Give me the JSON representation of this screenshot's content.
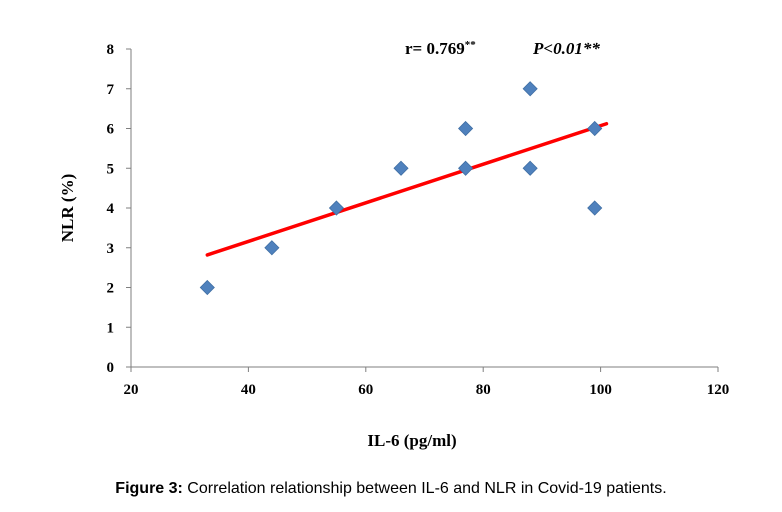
{
  "chart_data": {
    "type": "scatter",
    "xlabel": "IL-6 (pg/ml)",
    "ylabel": "NLR (%)",
    "xlim": [
      20,
      120
    ],
    "ylim": [
      0,
      8
    ],
    "xticks": [
      "20",
      "40",
      "60",
      "80",
      "100",
      "120"
    ],
    "yticks": [
      "0",
      "1",
      "2",
      "3",
      "4",
      "5",
      "6",
      "7",
      "8"
    ],
    "points": [
      {
        "x": 33,
        "y": 2
      },
      {
        "x": 44,
        "y": 3
      },
      {
        "x": 55,
        "y": 4
      },
      {
        "x": 66,
        "y": 5
      },
      {
        "x": 77,
        "y": 5
      },
      {
        "x": 77,
        "y": 6
      },
      {
        "x": 88,
        "y": 7
      },
      {
        "x": 88,
        "y": 5
      },
      {
        "x": 99,
        "y": 6
      },
      {
        "x": 99,
        "y": 4
      }
    ],
    "trendline": {
      "x1": 33,
      "y1": 2.82,
      "x2": 101,
      "y2": 6.12
    },
    "annotation_r": "r= 0.769",
    "annotation_r_sup": "**",
    "annotation_p": "P<0.01**",
    "colors": {
      "points": "#4F81BD",
      "trendline": "#FF0000"
    },
    "grid": false,
    "legend": "none"
  },
  "caption": {
    "label": "Figure 3:",
    "text": " Correlation relationship between IL-6 and NLR in Covid-19 patients."
  }
}
